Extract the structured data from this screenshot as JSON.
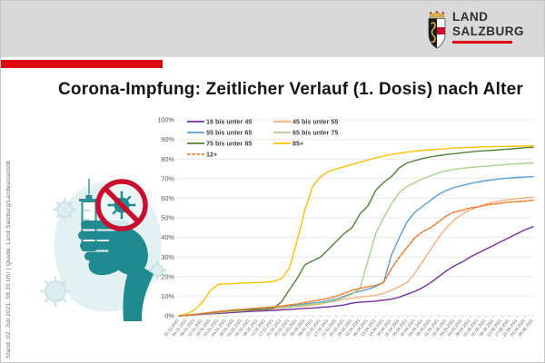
{
  "header": {
    "logo": {
      "line1": "LAND",
      "line2": "SALZBURG"
    }
  },
  "title": "Corona-Impfung: Zeitlicher Verlauf (1. Dosis) nach Alter",
  "source_note": "Stand: 02. Juli 2021, 08.30 Uhr  |  Quelle: Land Salzburg/Landesstatistik",
  "colors": {
    "accent_red": "#dd0a12",
    "header_gray": "#d9d9d9",
    "illustration_teal": "#1f8b91",
    "illustration_blob": "#e4f1f2",
    "prohibition_red": "#c8102e",
    "axis_text": "#595959",
    "gridline": "#e9e9e9"
  },
  "chart_data": {
    "type": "line",
    "title": "Corona-Impfung: Zeitlicher Verlauf (1. Dosis) nach Alter",
    "xlabel": "",
    "ylabel": "",
    "ylim": [
      0,
      100
    ],
    "ytick_format": "percent",
    "yticks": [
      0,
      10,
      20,
      30,
      40,
      50,
      60,
      70,
      80,
      90,
      100
    ],
    "grid": "horizontal",
    "legend_position": "top-left",
    "categories": [
      "31.12.2020",
      "04.01.2021",
      "08.01.2021",
      "12.01.2021",
      "16.01.2021",
      "20.01.2021",
      "24.01.2021",
      "28.01.2021",
      "01.02.2021",
      "05.02.2021",
      "09.02.2021",
      "13.02.2021",
      "17.02.2021",
      "21.02.2021",
      "25.02.2021",
      "01.03.2021",
      "05.03.2021",
      "09.03.2021",
      "13.03.2021",
      "17.03.2021",
      "21.03.2021",
      "25.03.2021",
      "29.03.2021",
      "02.04.2021",
      "06.04.2021",
      "10.04.2021",
      "14.04.2021",
      "18.04.2021",
      "22.04.2021",
      "26.04.2021",
      "30.04.2021",
      "04.05.2021",
      "08.05.2021",
      "12.05.2021",
      "16.05.2021",
      "20.05.2021",
      "24.05.2021",
      "28.05.2021",
      "01.06.2021",
      "05.06.2021",
      "09.06.2021",
      "13.06.2021",
      "17.06.2021",
      "21.06.2021",
      "25.06.2021",
      "29.06.2021"
    ],
    "series": [
      {
        "name": "16 bis unter 45",
        "color": "#7030A0",
        "dashed": false,
        "values": [
          0,
          0.2,
          0.5,
          0.8,
          1,
          1.2,
          1.5,
          1.7,
          2,
          2.2,
          2.4,
          2.6,
          2.8,
          3,
          3.2,
          3.5,
          3.8,
          4,
          4.3,
          4.6,
          5,
          5.5,
          6.5,
          7,
          7.2,
          7.5,
          8,
          8.5,
          9.5,
          11,
          12.5,
          14.5,
          17,
          20,
          23,
          25.5,
          27.5,
          30,
          32,
          34,
          36,
          38,
          40,
          42,
          44,
          45.5
        ]
      },
      {
        "name": "45 bis unter 55",
        "color": "#F4B183",
        "dashed": false,
        "values": [
          0,
          0.3,
          0.6,
          1,
          1.3,
          1.6,
          2,
          2.2,
          2.5,
          2.8,
          3,
          3.3,
          3.6,
          4,
          4.3,
          4.7,
          5,
          5.5,
          6,
          6.8,
          7.5,
          8.5,
          9,
          9.5,
          10,
          10.5,
          11.5,
          13,
          15,
          17,
          22,
          28,
          34,
          40,
          45,
          49,
          52,
          54,
          55.5,
          57,
          58,
          58.7,
          59.3,
          59.8,
          60.2,
          60.5
        ]
      },
      {
        "name": "55 bis unter 65",
        "color": "#5B9BD5",
        "dashed": false,
        "values": [
          0,
          0.3,
          0.8,
          1.2,
          1.6,
          2,
          2.3,
          2.6,
          3,
          3.3,
          3.6,
          4,
          4.3,
          4.6,
          5,
          5.5,
          6,
          6.5,
          7,
          7.8,
          8.5,
          10,
          11.5,
          12.5,
          13.5,
          15,
          17,
          31,
          40,
          48,
          53,
          56,
          59,
          62,
          64,
          65.5,
          66.5,
          67.5,
          68.3,
          69,
          69.5,
          70,
          70.3,
          70.6,
          70.8,
          71
        ]
      },
      {
        "name": "65 bis unter 75",
        "color": "#A9D18E",
        "dashed": false,
        "values": [
          0,
          0.3,
          0.7,
          1,
          1.4,
          1.8,
          2.2,
          2.5,
          2.8,
          3,
          3.3,
          3.6,
          4,
          4.3,
          4.6,
          5,
          5.5,
          6,
          6.5,
          7,
          8,
          9.5,
          11,
          14,
          28,
          42,
          50,
          57,
          63,
          66,
          68,
          70,
          71.5,
          73,
          74,
          74.7,
          75.2,
          75.7,
          76,
          76.3,
          76.6,
          77,
          77.3,
          77.6,
          77.8,
          78
        ]
      },
      {
        "name": "75 bis unter 85",
        "color": "#538135",
        "dashed": false,
        "values": [
          0,
          0.3,
          0.7,
          1,
          1.5,
          2,
          2.5,
          2.8,
          3,
          3,
          3.2,
          3.4,
          4,
          7,
          13,
          19,
          26,
          28,
          30,
          34,
          38,
          42,
          45,
          52,
          56,
          64,
          68,
          71,
          75.5,
          78,
          79.2,
          80.3,
          81.1,
          81.7,
          82.3,
          82.7,
          83.2,
          83.6,
          84,
          84.2,
          84.5,
          84.8,
          85.1,
          85.4,
          85.8,
          86
        ]
      },
      {
        "name": "85+",
        "color": "#FFC000",
        "dashed": false,
        "values": [
          0,
          1,
          3,
          7,
          13,
          16,
          16.3,
          16.5,
          16.7,
          16.8,
          17,
          17.2,
          17.5,
          19,
          24,
          38,
          54,
          66,
          71,
          73.5,
          75,
          76,
          77.2,
          78.4,
          79.5,
          80.6,
          81.5,
          82.3,
          82.9,
          83.5,
          84,
          84.4,
          84.7,
          85,
          85.3,
          85.6,
          85.8,
          85.9,
          86.1,
          86.2,
          86.4,
          86.4,
          86.5,
          86.5,
          86.7,
          86.7
        ]
      },
      {
        "name": "12+",
        "color": "#ED7D31",
        "dashed": true,
        "values": [
          0,
          0.3,
          0.7,
          1.2,
          1.7,
          2.2,
          2.6,
          3,
          3.3,
          3.6,
          4,
          4.3,
          4.6,
          5,
          5.5,
          6,
          6.8,
          7.5,
          8.2,
          9,
          10,
          11.5,
          13,
          14,
          14.8,
          15.5,
          17,
          24,
          30,
          35,
          40,
          43,
          45,
          48,
          51,
          53,
          53.8,
          55,
          55.6,
          56.5,
          57,
          57.5,
          58,
          58.2,
          58.5,
          59
        ]
      }
    ]
  }
}
